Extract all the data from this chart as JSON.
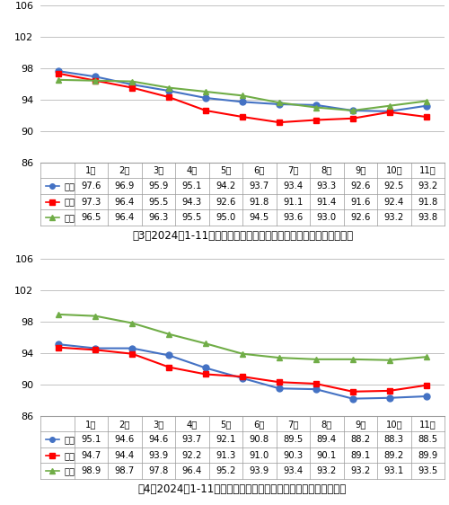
{
  "months": [
    "1月",
    "2月",
    "3月",
    "4月",
    "5月",
    "6月",
    "7月",
    "8月",
    "9月",
    "10月",
    "11月"
  ],
  "chart1": {
    "title": "图3：2024年1-11月南昌、九江、赣州新建商品住宅销售价格同比指数",
    "series": [
      {
        "name": "南昌",
        "color": "#4472C4",
        "marker": "o",
        "data": [
          97.6,
          96.9,
          95.9,
          95.1,
          94.2,
          93.7,
          93.4,
          93.3,
          92.6,
          92.5,
          93.2
        ]
      },
      {
        "name": "九江",
        "color": "#FF0000",
        "marker": "s",
        "data": [
          97.3,
          96.4,
          95.5,
          94.3,
          92.6,
          91.8,
          91.1,
          91.4,
          91.6,
          92.4,
          91.8
        ]
      },
      {
        "name": "赣州",
        "color": "#70AD47",
        "marker": "^",
        "data": [
          96.5,
          96.4,
          96.3,
          95.5,
          95.0,
          94.5,
          93.6,
          93.0,
          92.6,
          93.2,
          93.8
        ]
      }
    ],
    "ylim": [
      86,
      106
    ],
    "yticks": [
      86,
      90,
      94,
      98,
      102,
      106
    ]
  },
  "chart2": {
    "title": "图4：2024年1-11月南昌、九江、赣州二手住宅销售价格同比指数",
    "series": [
      {
        "name": "南昌",
        "color": "#4472C4",
        "marker": "o",
        "data": [
          95.1,
          94.6,
          94.6,
          93.7,
          92.1,
          90.8,
          89.5,
          89.4,
          88.2,
          88.3,
          88.5
        ]
      },
      {
        "name": "九江",
        "color": "#FF0000",
        "marker": "s",
        "data": [
          94.7,
          94.4,
          93.9,
          92.2,
          91.3,
          91.0,
          90.3,
          90.1,
          89.1,
          89.2,
          89.9
        ]
      },
      {
        "name": "赣州",
        "color": "#70AD47",
        "marker": "^",
        "data": [
          98.9,
          98.7,
          97.8,
          96.4,
          95.2,
          93.9,
          93.4,
          93.2,
          93.2,
          93.1,
          93.5
        ]
      }
    ],
    "ylim": [
      86,
      106
    ],
    "yticks": [
      86,
      90,
      94,
      98,
      102,
      106
    ]
  },
  "table1": {
    "rows": [
      [
        "南昌",
        "97.6",
        "96.9",
        "95.9",
        "95.1",
        "94.2",
        "93.7",
        "93.4",
        "93.3",
        "92.6",
        "92.5",
        "93.2"
      ],
      [
        "九江",
        "97.3",
        "96.4",
        "95.5",
        "94.3",
        "92.6",
        "91.8",
        "91.1",
        "91.4",
        "91.6",
        "92.4",
        "91.8"
      ],
      [
        "赣州",
        "96.5",
        "96.4",
        "96.3",
        "95.5",
        "95.0",
        "94.5",
        "93.6",
        "93.0",
        "92.6",
        "93.2",
        "93.8"
      ]
    ]
  },
  "table2": {
    "rows": [
      [
        "南昌",
        "95.1",
        "94.6",
        "94.6",
        "93.7",
        "92.1",
        "90.8",
        "89.5",
        "89.4",
        "88.2",
        "88.3",
        "88.5"
      ],
      [
        "九江",
        "94.7",
        "94.4",
        "93.9",
        "92.2",
        "91.3",
        "91.0",
        "90.3",
        "90.1",
        "89.1",
        "89.2",
        "89.9"
      ],
      [
        "赣州",
        "98.9",
        "98.7",
        "97.8",
        "96.4",
        "95.2",
        "93.9",
        "93.4",
        "93.2",
        "93.2",
        "93.1",
        "93.5"
      ]
    ]
  },
  "bg_color": "#FFFFFF",
  "line_width": 1.5,
  "marker_size": 5,
  "font_size_tick": 8,
  "font_size_title": 8.5,
  "font_size_table": 7.2,
  "grid_color": "#AAAAAA",
  "table_line_color": "#999999"
}
